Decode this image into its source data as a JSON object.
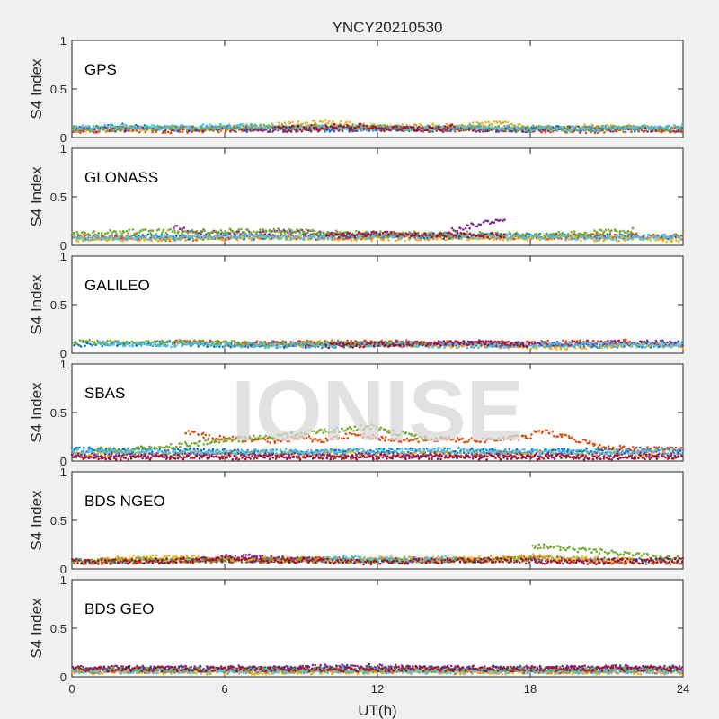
{
  "chart_data": {
    "type": "scatter",
    "title": "YNCY20210530",
    "xlabel": "UT(h)",
    "ylabel": "S4 Index",
    "xlim": [
      0,
      24
    ],
    "ylim": [
      0,
      1
    ],
    "xticks": [
      "0",
      "6",
      "12",
      "18",
      "24"
    ],
    "yticks": [
      "0",
      "0.5",
      "1"
    ],
    "grid": false,
    "watermark": "IONISE",
    "palette": [
      "#0072BD",
      "#D95319",
      "#EDB120",
      "#7E2F8E",
      "#77AC30",
      "#4DBEEE",
      "#A2142F"
    ],
    "panels": [
      {
        "name": "GPS",
        "series": [
          {
            "color": "#0072BD",
            "x": [
              0,
              1,
              2,
              3,
              4,
              5,
              6,
              7,
              8,
              9,
              10,
              11,
              12,
              13,
              14,
              15,
              16,
              17,
              18,
              19,
              20,
              21,
              22,
              23,
              24
            ],
            "y": [
              0.09,
              0.1,
              0.12,
              0.1,
              0.08,
              0.09,
              0.1,
              0.08,
              0.09,
              0.1,
              0.08,
              0.09,
              0.1,
              0.09,
              0.08,
              0.09,
              0.1,
              0.09,
              0.08,
              0.1,
              0.09,
              0.08,
              0.1,
              0.09,
              0.08
            ]
          },
          {
            "color": "#D95319",
            "x": [
              0,
              2,
              4,
              6,
              8,
              10,
              12,
              14,
              16,
              18,
              20,
              22,
              24
            ],
            "y": [
              0.07,
              0.08,
              0.07,
              0.08,
              0.09,
              0.1,
              0.09,
              0.08,
              0.09,
              0.08,
              0.07,
              0.08,
              0.07
            ]
          },
          {
            "color": "#EDB120",
            "x": [
              0,
              3,
              6,
              9,
              10,
              12,
              15,
              17,
              18,
              21,
              24
            ],
            "y": [
              0.08,
              0.09,
              0.1,
              0.14,
              0.16,
              0.11,
              0.12,
              0.15,
              0.1,
              0.11,
              0.09
            ]
          },
          {
            "color": "#7E2F8E",
            "x": [
              0,
              4,
              8,
              12,
              16,
              20,
              24
            ],
            "y": [
              0.08,
              0.09,
              0.08,
              0.09,
              0.08,
              0.09,
              0.08
            ]
          },
          {
            "color": "#77AC30",
            "x": [
              0,
              5,
              10,
              14,
              19,
              24
            ],
            "y": [
              0.09,
              0.1,
              0.11,
              0.1,
              0.09,
              0.1
            ]
          },
          {
            "color": "#4DBEEE",
            "x": [
              0,
              2,
              4,
              6,
              8,
              10,
              12,
              14,
              16,
              18,
              20,
              22,
              24
            ],
            "y": [
              0.1,
              0.11,
              0.1,
              0.12,
              0.11,
              0.1,
              0.09,
              0.1,
              0.11,
              0.1,
              0.09,
              0.1,
              0.11
            ]
          },
          {
            "color": "#A2142F",
            "x": [
              8,
              10,
              11,
              12,
              13,
              14,
              15
            ],
            "y": [
              0.09,
              0.11,
              0.12,
              0.1,
              0.09,
              0.1,
              0.11
            ]
          }
        ]
      },
      {
        "name": "GLONASS",
        "series": [
          {
            "color": "#0072BD",
            "x": [
              0,
              3,
              6,
              9,
              12,
              15,
              18,
              21,
              24
            ],
            "y": [
              0.08,
              0.09,
              0.08,
              0.09,
              0.1,
              0.09,
              0.1,
              0.09,
              0.08
            ]
          },
          {
            "color": "#D95319",
            "x": [
              0,
              2,
              4,
              6,
              8,
              10,
              12,
              14,
              16,
              18,
              20,
              22,
              24
            ],
            "y": [
              0.1,
              0.08,
              0.07,
              0.08,
              0.09,
              0.08,
              0.09,
              0.1,
              0.09,
              0.08,
              0.09,
              0.1,
              0.09
            ]
          },
          {
            "color": "#EDB120",
            "x": [
              0,
              4,
              8,
              12,
              16,
              20,
              24
            ],
            "y": [
              0.06,
              0.07,
              0.08,
              0.07,
              0.08,
              0.07,
              0.06
            ]
          },
          {
            "color": "#7E2F8E",
            "x": [
              4,
              5,
              6,
              7,
              8,
              9,
              10,
              11,
              12,
              13,
              14,
              17
            ],
            "y": [
              0.19,
              0.14,
              0.12,
              0.12,
              0.13,
              0.14,
              0.12,
              0.1,
              0.12,
              0.11,
              0.1,
              0.28
            ]
          },
          {
            "color": "#77AC30",
            "x": [
              0,
              2,
              9,
              10,
              12,
              19,
              21,
              22
            ],
            "y": [
              0.12,
              0.14,
              0.15,
              0.13,
              0.12,
              0.11,
              0.14,
              0.16
            ]
          },
          {
            "color": "#4DBEEE",
            "x": [
              0,
              3,
              6,
              9,
              12,
              15,
              18,
              21,
              24
            ],
            "y": [
              0.07,
              0.08,
              0.09,
              0.08,
              0.09,
              0.1,
              0.09,
              0.08,
              0.09
            ]
          },
          {
            "color": "#A2142F",
            "x": [
              10,
              12,
              14,
              16,
              17
            ],
            "y": [
              0.09,
              0.12,
              0.1,
              0.11,
              0.1
            ]
          }
        ]
      },
      {
        "name": "GALILEO",
        "series": [
          {
            "color": "#0072BD",
            "x": [
              0,
              3,
              6,
              9,
              12,
              15,
              18,
              21,
              24
            ],
            "y": [
              0.09,
              0.1,
              0.09,
              0.08,
              0.09,
              0.1,
              0.09,
              0.08,
              0.09
            ]
          },
          {
            "color": "#D95319",
            "x": [
              4,
              5,
              6,
              11,
              12,
              14,
              21,
              22
            ],
            "y": [
              0.12,
              0.11,
              0.1,
              0.11,
              0.12,
              0.1,
              0.11,
              0.12
            ]
          },
          {
            "color": "#EDB120",
            "x": [
              9,
              10,
              18,
              19,
              20,
              23,
              24
            ],
            "y": [
              0.09,
              0.1,
              0.07,
              0.06,
              0.07,
              0.08,
              0.07
            ]
          },
          {
            "color": "#7E2F8E",
            "x": [
              7,
              8,
              9,
              15,
              16,
              17,
              18,
              23,
              24
            ],
            "y": [
              0.09,
              0.1,
              0.09,
              0.1,
              0.11,
              0.09,
              0.1,
              0.11,
              0.1
            ]
          },
          {
            "color": "#77AC30",
            "x": [
              0,
              1,
              2,
              3,
              13,
              14
            ],
            "y": [
              0.11,
              0.12,
              0.1,
              0.11,
              0.09,
              0.1
            ]
          },
          {
            "color": "#4DBEEE",
            "x": [
              1,
              4,
              8,
              12,
              16,
              20,
              24
            ],
            "y": [
              0.1,
              0.09,
              0.08,
              0.09,
              0.08,
              0.09,
              0.08
            ]
          },
          {
            "color": "#A2142F",
            "x": [
              10,
              12,
              14,
              16,
              17,
              18
            ],
            "y": [
              0.08,
              0.09,
              0.1,
              0.11,
              0.1,
              0.09
            ]
          }
        ]
      },
      {
        "name": "SBAS",
        "series": [
          {
            "color": "#0072BD",
            "x": [
              0,
              3,
              6,
              9,
              12,
              15,
              18,
              21,
              24
            ],
            "y": [
              0.12,
              0.11,
              0.1,
              0.09,
              0.1,
              0.11,
              0.1,
              0.11,
              0.12
            ]
          },
          {
            "color": "#D95319",
            "x": [
              4.5,
              5,
              6,
              7,
              8,
              9,
              10,
              11,
              12,
              13,
              14,
              15,
              16,
              17,
              18,
              18.3,
              21,
              22,
              23,
              24
            ],
            "y": [
              0.31,
              0.27,
              0.23,
              0.22,
              0.21,
              0.24,
              0.21,
              0.27,
              0.24,
              0.21,
              0.23,
              0.22,
              0.21,
              0.23,
              0.25,
              0.32,
              0.14,
              0.13,
              0.12,
              0.13
            ]
          },
          {
            "color": "#EDB120",
            "x": [
              0,
              6,
              12,
              18,
              24
            ],
            "y": [
              0.07,
              0.08,
              0.07,
              0.08,
              0.07
            ]
          },
          {
            "color": "#7E2F8E",
            "x": [
              0,
              6,
              12,
              18,
              24
            ],
            "y": [
              0.06,
              0.06,
              0.06,
              0.06,
              0.06
            ]
          },
          {
            "color": "#77AC30",
            "x": [
              1,
              2,
              12,
              12.5,
              13,
              14
            ],
            "y": [
              0.12,
              0.11,
              0.36,
              0.3,
              0.28,
              0.22
            ]
          },
          {
            "color": "#4DBEEE",
            "x": [
              0,
              4,
              8,
              12,
              16,
              20,
              24
            ],
            "y": [
              0.1,
              0.09,
              0.1,
              0.11,
              0.1,
              0.09,
              0.1
            ]
          },
          {
            "color": "#A2142F",
            "x": [
              0,
              6,
              12,
              18,
              24
            ],
            "y": [
              0.04,
              0.04,
              0.04,
              0.04,
              0.04
            ]
          }
        ]
      },
      {
        "name": "BDS NGEO",
        "series": [
          {
            "color": "#0072BD",
            "x": [
              0,
              3,
              6,
              9,
              12,
              15,
              18,
              21,
              24
            ],
            "y": [
              0.09,
              0.08,
              0.09,
              0.1,
              0.09,
              0.08,
              0.11,
              0.09,
              0.08
            ]
          },
          {
            "color": "#D95319",
            "x": [
              0,
              4,
              8,
              12,
              16,
              18,
              20,
              24
            ],
            "y": [
              0.07,
              0.08,
              0.09,
              0.1,
              0.09,
              0.12,
              0.08,
              0.07
            ]
          },
          {
            "color": "#EDB120",
            "x": [
              1,
              2,
              10,
              17,
              18,
              22
            ],
            "y": [
              0.09,
              0.12,
              0.1,
              0.11,
              0.13,
              0.09
            ]
          },
          {
            "color": "#7E2F8E",
            "x": [
              5,
              6,
              7,
              8,
              9,
              10
            ],
            "y": [
              0.1,
              0.12,
              0.13,
              0.11,
              0.1,
              0.09
            ]
          },
          {
            "color": "#77AC30",
            "x": [
              0,
              3,
              6,
              12,
              18,
              18.1,
              24
            ],
            "y": [
              0.08,
              0.09,
              0.09,
              0.08,
              0.1,
              0.24,
              0.1
            ]
          },
          {
            "color": "#4DBEEE",
            "x": [
              10,
              11,
              12,
              13,
              14,
              15
            ],
            "y": [
              0.1,
              0.11,
              0.1,
              0.09,
              0.1,
              0.11
            ]
          },
          {
            "color": "#A2142F",
            "x": [
              0,
              2,
              4,
              6,
              8,
              10,
              12,
              14,
              16,
              18,
              20,
              22,
              24
            ],
            "y": [
              0.08,
              0.07,
              0.09,
              0.1,
              0.09,
              0.08,
              0.07,
              0.08,
              0.09,
              0.08,
              0.07,
              0.08,
              0.09
            ]
          }
        ]
      },
      {
        "name": "BDS GEO",
        "series": [
          {
            "color": "#0072BD",
            "x": [
              0,
              6,
              12,
              18,
              24
            ],
            "y": [
              0.08,
              0.08,
              0.08,
              0.08,
              0.08
            ]
          },
          {
            "color": "#D95319",
            "x": [
              0,
              6,
              12,
              18,
              24
            ],
            "y": [
              0.06,
              0.06,
              0.06,
              0.06,
              0.06
            ]
          },
          {
            "color": "#EDB120",
            "x": [
              0,
              6,
              12,
              18,
              24
            ],
            "y": [
              0.05,
              0.05,
              0.05,
              0.05,
              0.05
            ]
          },
          {
            "color": "#7E2F8E",
            "x": [
              0,
              4,
              8,
              11,
              14,
              18,
              22,
              24
            ],
            "y": [
              0.09,
              0.09,
              0.09,
              0.11,
              0.09,
              0.09,
              0.1,
              0.09
            ]
          },
          {
            "color": "#77AC30",
            "x": [
              0,
              12,
              24
            ],
            "y": [
              0.07,
              0.07,
              0.07
            ]
          },
          {
            "color": "#4DBEEE",
            "x": [
              0,
              12,
              24
            ],
            "y": [
              0.06,
              0.06,
              0.06
            ]
          },
          {
            "color": "#A2142F",
            "x": [
              0,
              12,
              24
            ],
            "y": [
              0.08,
              0.08,
              0.08
            ]
          }
        ]
      }
    ]
  }
}
